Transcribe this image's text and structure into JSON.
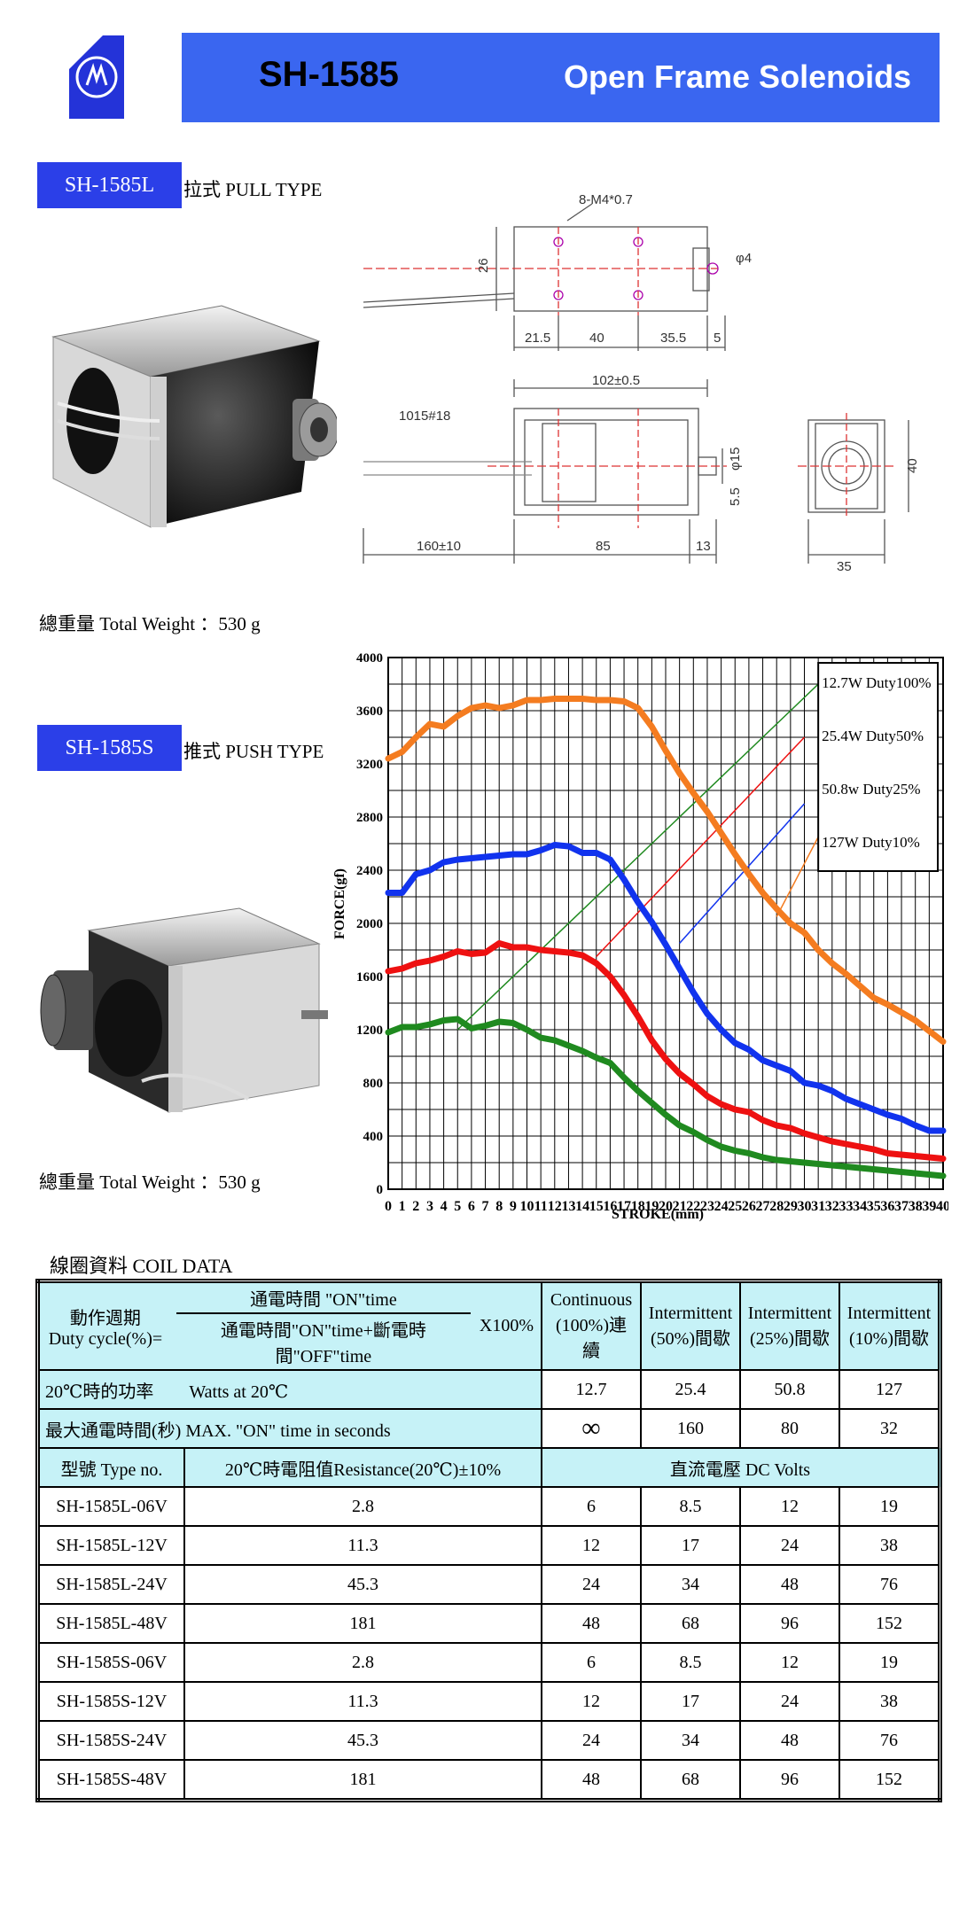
{
  "header": {
    "model": "SH-1585",
    "series": "Open Frame Solenoids"
  },
  "pull": {
    "tag": "SH-1585L",
    "desc": "拉式 PULL TYPE",
    "weight": "總重量 Total Weight ：530 g"
  },
  "push": {
    "tag": "SH-1585S",
    "desc": "推式 PUSH TYPE",
    "weight": "總重量 Total Weight ：530 g"
  },
  "drawing": {
    "hole_spec": "8-M4*0.7",
    "dim_26": "26",
    "dim_phi4": "φ4",
    "dim_21_5": "21.5",
    "dim_40a": "40",
    "dim_35_5": "35.5",
    "dim_5": "5",
    "dim_102": "102±0.5",
    "wire": "1015#18",
    "dim_phi15": "φ15",
    "dim_5_5": "5.5",
    "dim_160": "160±10",
    "dim_85": "85",
    "dim_13": "13",
    "dim_35": "35",
    "dim_40b": "40"
  },
  "chart_data": {
    "type": "line",
    "xlabel": "STROKE(mm)",
    "ylabel": "FORCE(gf)",
    "xlim": [
      0,
      40
    ],
    "ylim": [
      0,
      4000
    ],
    "x_ticks": [
      "0",
      "1",
      "2",
      "3",
      "4",
      "5",
      "6",
      "7",
      "8",
      "9",
      "10",
      "11",
      "12",
      "13",
      "14",
      "15",
      "16",
      "17",
      "18",
      "19",
      "20",
      "21",
      "22",
      "23",
      "24",
      "25",
      "26",
      "27",
      "28",
      "29",
      "30",
      "31",
      "32",
      "33",
      "34",
      "35",
      "36",
      "37",
      "38",
      "39",
      "40"
    ],
    "y_ticks": [
      0,
      400,
      800,
      1200,
      1600,
      2000,
      2400,
      2800,
      3200,
      3600,
      4000
    ],
    "grid": true,
    "legend_position": "top-right",
    "x": [
      0,
      1,
      2,
      3,
      4,
      5,
      6,
      7,
      8,
      9,
      10,
      11,
      12,
      13,
      14,
      15,
      16,
      17,
      18,
      19,
      20,
      21,
      22,
      23,
      24,
      25,
      26,
      27,
      28,
      29,
      30,
      31,
      32,
      33,
      34,
      35,
      36,
      37,
      38,
      39,
      40
    ],
    "series": [
      {
        "name": "12.7W Duty100%",
        "color": "#1f8a1f",
        "values": [
          1180,
          1220,
          1220,
          1240,
          1270,
          1280,
          1210,
          1230,
          1260,
          1250,
          1200,
          1140,
          1120,
          1080,
          1040,
          990,
          950,
          840,
          740,
          650,
          560,
          480,
          430,
          370,
          320,
          290,
          270,
          240,
          220,
          210,
          200,
          190,
          180,
          170,
          160,
          150,
          140,
          130,
          120,
          110,
          100
        ]
      },
      {
        "name": "25.4W Duty50%",
        "color": "#ee1111",
        "values": [
          1640,
          1660,
          1700,
          1720,
          1750,
          1790,
          1770,
          1780,
          1850,
          1820,
          1820,
          1800,
          1790,
          1780,
          1760,
          1700,
          1600,
          1460,
          1300,
          1120,
          980,
          870,
          790,
          700,
          640,
          600,
          580,
          520,
          480,
          460,
          420,
          390,
          360,
          340,
          320,
          300,
          270,
          260,
          250,
          240,
          230
        ]
      },
      {
        "name": "50.8w Duty25%",
        "color": "#1133ee",
        "values": [
          2230,
          2230,
          2370,
          2400,
          2460,
          2480,
          2490,
          2500,
          2510,
          2520,
          2520,
          2550,
          2590,
          2580,
          2530,
          2530,
          2480,
          2330,
          2160,
          2010,
          1840,
          1660,
          1480,
          1320,
          1200,
          1100,
          1050,
          970,
          930,
          890,
          800,
          780,
          740,
          680,
          640,
          600,
          560,
          530,
          480,
          440,
          440
        ]
      },
      {
        "name": "127W Duty10%",
        "color": "#f47c20",
        "values": [
          3240,
          3290,
          3400,
          3500,
          3480,
          3560,
          3620,
          3640,
          3620,
          3640,
          3680,
          3680,
          3690,
          3690,
          3690,
          3680,
          3680,
          3670,
          3620,
          3480,
          3300,
          3130,
          2980,
          2840,
          2680,
          2520,
          2370,
          2230,
          2110,
          2000,
          1930,
          1800,
          1700,
          1620,
          1530,
          1440,
          1390,
          1330,
          1270,
          1190,
          1110
        ]
      }
    ],
    "duty_lines": [
      {
        "color": "#1f8a1f",
        "from": [
          5,
          1200
        ],
        "to": [
          32,
          3900
        ]
      },
      {
        "color": "#ee1111",
        "from": [
          15,
          1750
        ],
        "to": [
          30,
          3400
        ]
      },
      {
        "color": "#1133ee",
        "from": [
          21,
          1850
        ],
        "to": [
          30,
          2900
        ]
      },
      {
        "color": "#f47c20",
        "from": [
          28,
          2050
        ],
        "to": [
          31,
          2650
        ]
      }
    ]
  },
  "table": {
    "caption": "線圈資料 COIL DATA",
    "duty_label_1": "動作週期",
    "duty_label_2": "Duty cycle(%)=",
    "frac_num": "通電時間 \"ON\"time",
    "frac_den": "通電時間\"ON\"time+斷電時間\"OFF\"time",
    "x100": "X100%",
    "cols": [
      [
        "Continuous",
        "(100%)連續"
      ],
      [
        "Intermittent",
        "(50%)間歇"
      ],
      [
        "Intermittent",
        "(25%)間歇"
      ],
      [
        "Intermittent",
        "(10%)間歇"
      ]
    ],
    "watts_label": "20℃時的功率　　Watts at 20℃",
    "watts": [
      "12.7",
      "25.4",
      "50.8",
      "127"
    ],
    "maxon_label": "最大通電時間(秒) MAX. \"ON\" time in seconds",
    "maxon": [
      "∞",
      "160",
      "80",
      "32"
    ],
    "type_header": "型號 Type no.",
    "resist_header": "20℃時電阻值Resistance(20℃)±10%",
    "volts_header": "直流電壓 DC Volts",
    "rows": [
      {
        "type": "SH-1585L-06V",
        "res": "2.8",
        "v": [
          "6",
          "8.5",
          "12",
          "19"
        ]
      },
      {
        "type": "SH-1585L-12V",
        "res": "11.3",
        "v": [
          "12",
          "17",
          "24",
          "38"
        ]
      },
      {
        "type": "SH-1585L-24V",
        "res": "45.3",
        "v": [
          "24",
          "34",
          "48",
          "76"
        ]
      },
      {
        "type": "SH-1585L-48V",
        "res": "181",
        "v": [
          "48",
          "68",
          "96",
          "152"
        ]
      },
      {
        "type": "SH-1585S-06V",
        "res": "2.8",
        "v": [
          "6",
          "8.5",
          "12",
          "19"
        ]
      },
      {
        "type": "SH-1585S-12V",
        "res": "11.3",
        "v": [
          "12",
          "17",
          "24",
          "38"
        ]
      },
      {
        "type": "SH-1585S-24V",
        "res": "45.3",
        "v": [
          "24",
          "34",
          "48",
          "76"
        ]
      },
      {
        "type": "SH-1585S-48V",
        "res": "181",
        "v": [
          "48",
          "68",
          "96",
          "152"
        ]
      }
    ]
  }
}
